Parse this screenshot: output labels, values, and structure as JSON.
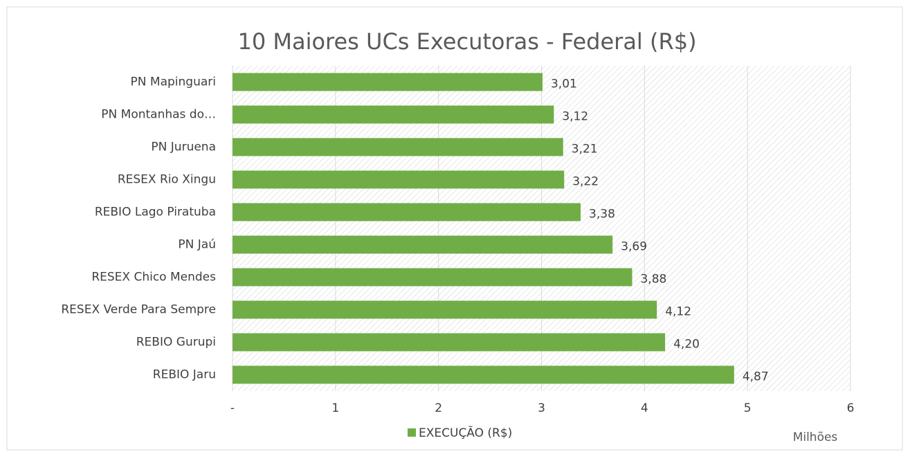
{
  "chart_data": {
    "type": "bar",
    "orientation": "horizontal",
    "title": "10 Maiores UCs Executoras - Federal (R$)",
    "categories": [
      "PN Mapinguari",
      "PN Montanhas do…",
      "PN Juruena",
      "RESEX Rio Xingu",
      "REBIO Lago Piratuba",
      "PN Jaú",
      "RESEX Chico Mendes",
      "RESEX Verde Para Sempre",
      "REBIO Gurupi",
      "REBIO Jaru"
    ],
    "series": [
      {
        "name": "EXECUÇÃO (R$)",
        "color": "#70ad47",
        "values": [
          3.01,
          3.12,
          3.21,
          3.22,
          3.38,
          3.69,
          3.88,
          4.12,
          4.2,
          4.87
        ],
        "value_labels": [
          "3,01",
          "3,12",
          "3,21",
          "3,22",
          "3,38",
          "3,69",
          "3,88",
          "4,12",
          "4,20",
          "4,87"
        ]
      }
    ],
    "xlim": [
      0,
      6
    ],
    "xticks": [
      {
        "value": 0,
        "label": "-"
      },
      1,
      2,
      3,
      4,
      5,
      6
    ],
    "x_unit_label": "Milhões",
    "grid": true,
    "legend": "bottom"
  }
}
